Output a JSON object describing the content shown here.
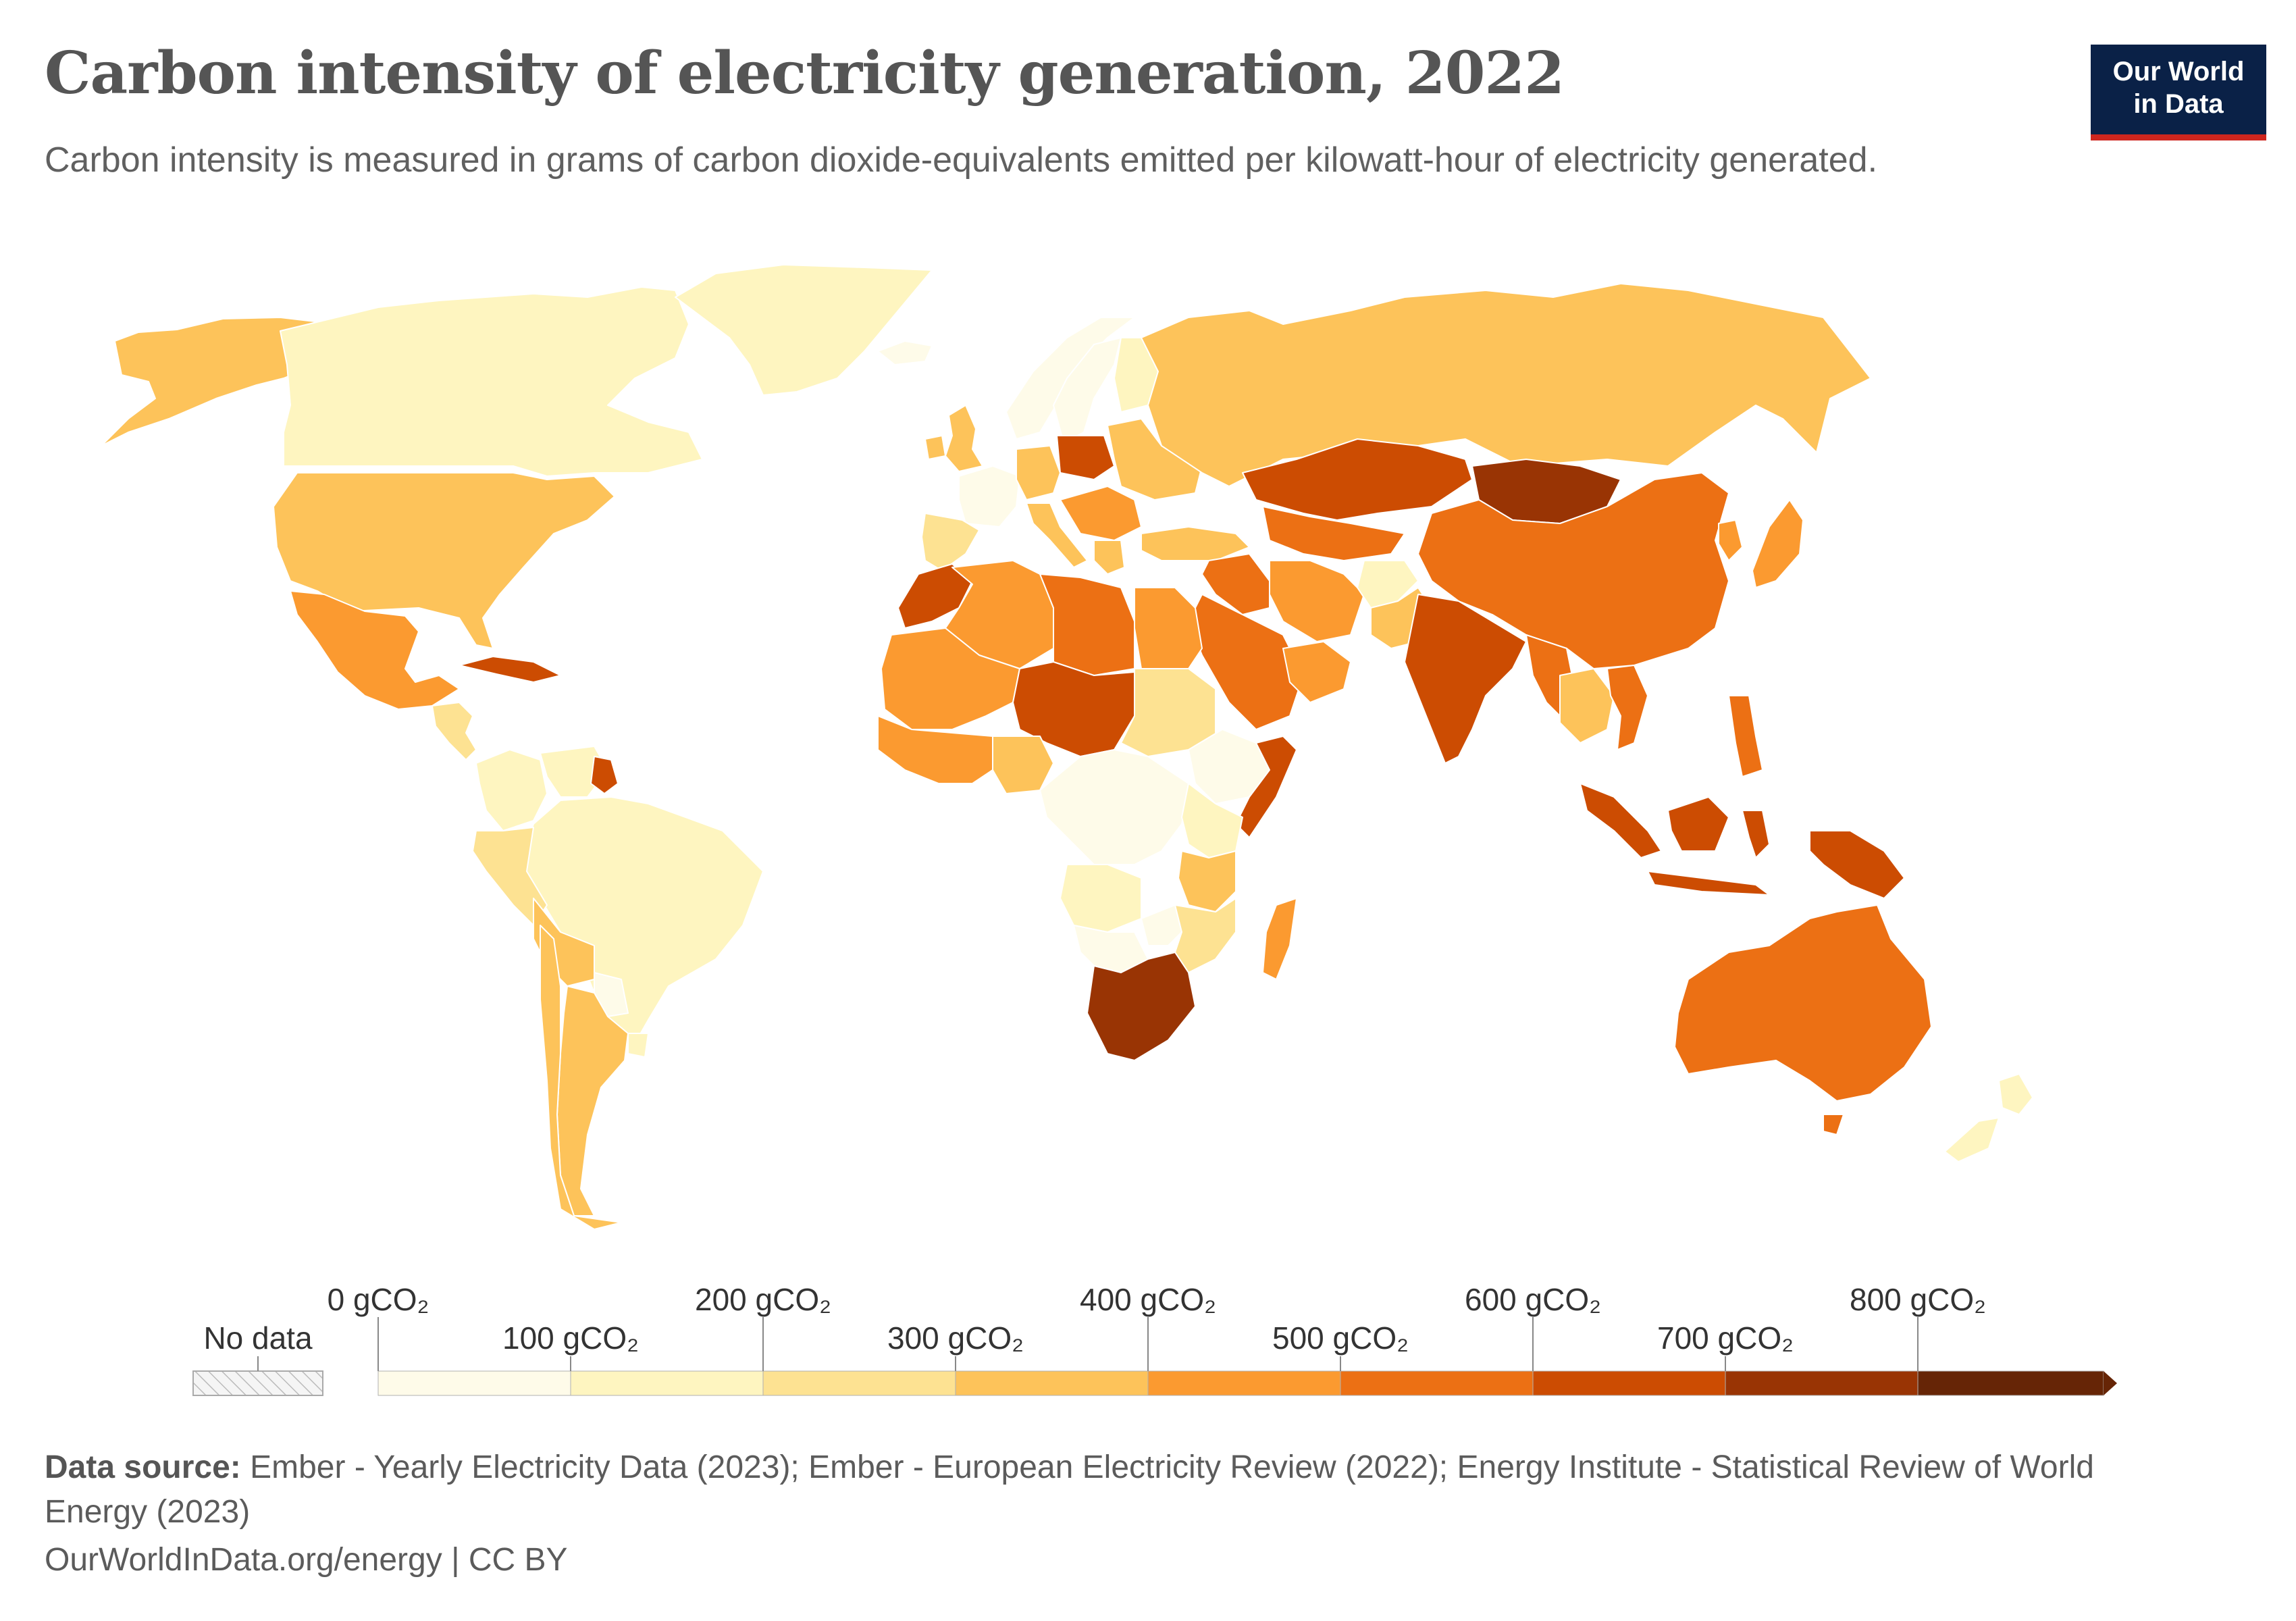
{
  "header": {
    "title": "Carbon intensity of electricity generation, 2022",
    "subtitle": "Carbon intensity is measured in grams of carbon dioxide-equivalents emitted per kilowatt-hour of electricity generated.",
    "logo_line1": "Our World",
    "logo_line2": "in Data"
  },
  "legend": {
    "no_data_label": "No data",
    "bins": [
      {
        "label": "0 gCO₂",
        "from": 0,
        "to": 100,
        "color": "#fefbe9"
      },
      {
        "label": "100 gCO₂",
        "from": 100,
        "to": 200,
        "color": "#fef5c0"
      },
      {
        "label": "200 gCO₂",
        "from": 200,
        "to": 300,
        "color": "#fde292"
      },
      {
        "label": "300 gCO₂",
        "from": 300,
        "to": 400,
        "color": "#fdc35a"
      },
      {
        "label": "400 gCO₂",
        "from": 400,
        "to": 500,
        "color": "#fb9a30"
      },
      {
        "label": "500 gCO₂",
        "from": 500,
        "to": 600,
        "color": "#ec7014"
      },
      {
        "label": "600 gCO₂",
        "from": 600,
        "to": 700,
        "color": "#cc4c02"
      },
      {
        "label": "700 gCO₂",
        "from": 700,
        "to": 800,
        "color": "#993404"
      },
      {
        "label": "800 gCO₂",
        "from": 800,
        "to": null,
        "color": "#662506"
      }
    ]
  },
  "map_data": {
    "regions": [
      {
        "id": "alaska",
        "bin": 3
      },
      {
        "id": "canada",
        "bin": 1
      },
      {
        "id": "greenland",
        "bin": 1
      },
      {
        "id": "usa",
        "bin": 3
      },
      {
        "id": "mexico",
        "bin": 4
      },
      {
        "id": "central-america",
        "bin": 2
      },
      {
        "id": "cuba",
        "bin": 6
      },
      {
        "id": "colombia",
        "bin": 1
      },
      {
        "id": "venezuela",
        "bin": 1
      },
      {
        "id": "guyana",
        "bin": 6
      },
      {
        "id": "brazil",
        "bin": 1
      },
      {
        "id": "peru",
        "bin": 2
      },
      {
        "id": "bolivia",
        "bin": 3
      },
      {
        "id": "paraguay",
        "bin": 0
      },
      {
        "id": "uruguay",
        "bin": 1
      },
      {
        "id": "argentina",
        "bin": 3
      },
      {
        "id": "chile",
        "bin": 3
      },
      {
        "id": "iceland",
        "bin": 0
      },
      {
        "id": "norway",
        "bin": 0
      },
      {
        "id": "sweden",
        "bin": 0
      },
      {
        "id": "finland",
        "bin": 1
      },
      {
        "id": "uk",
        "bin": 3
      },
      {
        "id": "ireland",
        "bin": 3
      },
      {
        "id": "france",
        "bin": 0
      },
      {
        "id": "iberia",
        "bin": 2
      },
      {
        "id": "germany",
        "bin": 3
      },
      {
        "id": "poland",
        "bin": 6
      },
      {
        "id": "italy",
        "bin": 3
      },
      {
        "id": "balkans",
        "bin": 4
      },
      {
        "id": "greece",
        "bin": 3
      },
      {
        "id": "belarus-ukraine",
        "bin": 3
      },
      {
        "id": "russia",
        "bin": 3
      },
      {
        "id": "turkey",
        "bin": 3
      },
      {
        "id": "kazakhstan",
        "bin": 6
      },
      {
        "id": "central-asia",
        "bin": 5
      },
      {
        "id": "mongolia",
        "bin": 7
      },
      {
        "id": "china",
        "bin": 5
      },
      {
        "id": "korea",
        "bin": 4
      },
      {
        "id": "japan",
        "bin": 4
      },
      {
        "id": "iran",
        "bin": 4
      },
      {
        "id": "iraq-syria",
        "bin": 5
      },
      {
        "id": "saudi-arabia",
        "bin": 5
      },
      {
        "id": "gulf-states",
        "bin": 4
      },
      {
        "id": "afghanistan",
        "bin": 1
      },
      {
        "id": "pakistan",
        "bin": 3
      },
      {
        "id": "india",
        "bin": 6
      },
      {
        "id": "bangladesh-myanmar",
        "bin": 5
      },
      {
        "id": "se-asia-mainland",
        "bin": 3
      },
      {
        "id": "vietnam",
        "bin": 5
      },
      {
        "id": "indonesia",
        "bin": 6
      },
      {
        "id": "philippines",
        "bin": 5
      },
      {
        "id": "papua",
        "bin": 6
      },
      {
        "id": "australia",
        "bin": 5
      },
      {
        "id": "new-zealand",
        "bin": 1
      },
      {
        "id": "morocco",
        "bin": 6
      },
      {
        "id": "algeria",
        "bin": 4
      },
      {
        "id": "libya",
        "bin": 5
      },
      {
        "id": "egypt",
        "bin": 4
      },
      {
        "id": "mauritania-mali",
        "bin": 4
      },
      {
        "id": "niger-chad",
        "bin": 6
      },
      {
        "id": "sudan",
        "bin": 2
      },
      {
        "id": "ethiopia",
        "bin": 0
      },
      {
        "id": "somalia",
        "bin": 6
      },
      {
        "id": "nigeria",
        "bin": 3
      },
      {
        "id": "west-africa",
        "bin": 4
      },
      {
        "id": "central-africa",
        "bin": 0
      },
      {
        "id": "east-africa",
        "bin": 1
      },
      {
        "id": "tanzania",
        "bin": 3
      },
      {
        "id": "angola",
        "bin": 1
      },
      {
        "id": "southern-africa",
        "bin": 0
      },
      {
        "id": "zimbabwe-mozambique",
        "bin": 2
      },
      {
        "id": "south-africa",
        "bin": 7
      },
      {
        "id": "madagascar",
        "bin": 4
      }
    ]
  }
}
